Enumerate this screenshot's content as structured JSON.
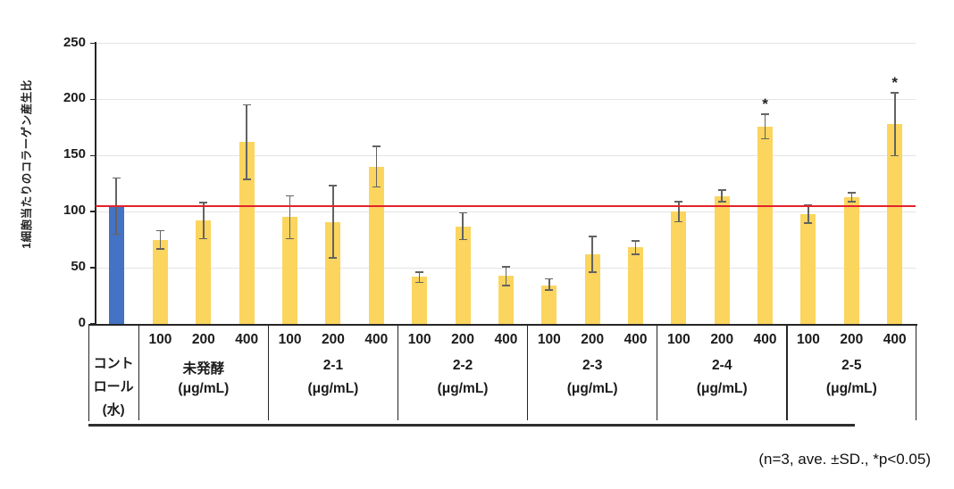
{
  "chart_data": {
    "type": "bar",
    "title": "",
    "ylabel": "1細胞当たりのコラーゲン産生比",
    "ylim": [
      0,
      250
    ],
    "yticks": [
      0,
      50,
      100,
      150,
      200,
      250
    ],
    "grid": true,
    "legend": "none",
    "annotation": "(n=3, ave. ±SD., *p<0.05)",
    "significance_marker": "*",
    "reference_line": {
      "value": 105,
      "color": "#e3232b"
    },
    "colors": {
      "control_bar": "#4472c4",
      "treatment_bar": "#fbd55e",
      "error_bar": "#636363",
      "axis": "#262626",
      "gridline": "#e4e4e8"
    },
    "groups": [
      {
        "name": "コントロール(水)",
        "name_lines": [
          "コント",
          "ロール",
          "(水)"
        ],
        "unit": "",
        "bars": [
          {
            "dose": "",
            "value": 104,
            "err_low": 80,
            "err_high": 130,
            "significant": false
          }
        ]
      },
      {
        "name": "未発酵",
        "unit": "(μg/mL)",
        "bars": [
          {
            "dose": "100",
            "value": 75,
            "err_low": 67,
            "err_high": 83,
            "significant": false
          },
          {
            "dose": "200",
            "value": 92,
            "err_low": 76,
            "err_high": 108,
            "significant": false
          },
          {
            "dose": "400",
            "value": 162,
            "err_low": 129,
            "err_high": 195,
            "significant": false
          }
        ]
      },
      {
        "name": "2-1",
        "unit": "(μg/mL)",
        "bars": [
          {
            "dose": "100",
            "value": 95,
            "err_low": 76,
            "err_high": 114,
            "significant": false
          },
          {
            "dose": "200",
            "value": 91,
            "err_low": 59,
            "err_high": 123,
            "significant": false
          },
          {
            "dose": "400",
            "value": 140,
            "err_low": 122,
            "err_high": 158,
            "significant": false
          }
        ]
      },
      {
        "name": "2-2",
        "unit": "(μg/mL)",
        "bars": [
          {
            "dose": "100",
            "value": 42,
            "err_low": 37,
            "err_high": 46,
            "significant": false
          },
          {
            "dose": "200",
            "value": 87,
            "err_low": 75,
            "err_high": 99,
            "significant": false
          },
          {
            "dose": "400",
            "value": 43,
            "err_low": 34,
            "err_high": 51,
            "significant": false
          }
        ]
      },
      {
        "name": "2-3",
        "unit": "(μg/mL)",
        "bars": [
          {
            "dose": "100",
            "value": 34,
            "err_low": 30,
            "err_high": 40,
            "significant": false
          },
          {
            "dose": "200",
            "value": 62,
            "err_low": 46,
            "err_high": 78,
            "significant": false
          },
          {
            "dose": "400",
            "value": 68,
            "err_low": 62,
            "err_high": 74,
            "significant": false
          }
        ]
      },
      {
        "name": "2-4",
        "unit": "(μg/mL)",
        "bars": [
          {
            "dose": "100",
            "value": 100,
            "err_low": 91,
            "err_high": 109,
            "significant": false
          },
          {
            "dose": "200",
            "value": 114,
            "err_low": 109,
            "err_high": 119,
            "significant": false
          },
          {
            "dose": "400",
            "value": 176,
            "err_low": 165,
            "err_high": 187,
            "significant": true
          }
        ]
      },
      {
        "name": "2-5",
        "unit": "(μg/mL)",
        "bars": [
          {
            "dose": "100",
            "value": 98,
            "err_low": 90,
            "err_high": 106,
            "significant": false
          },
          {
            "dose": "200",
            "value": 113,
            "err_low": 109,
            "err_high": 117,
            "significant": false
          },
          {
            "dose": "400",
            "value": 178,
            "err_low": 150,
            "err_high": 206,
            "significant": true
          }
        ]
      }
    ]
  }
}
